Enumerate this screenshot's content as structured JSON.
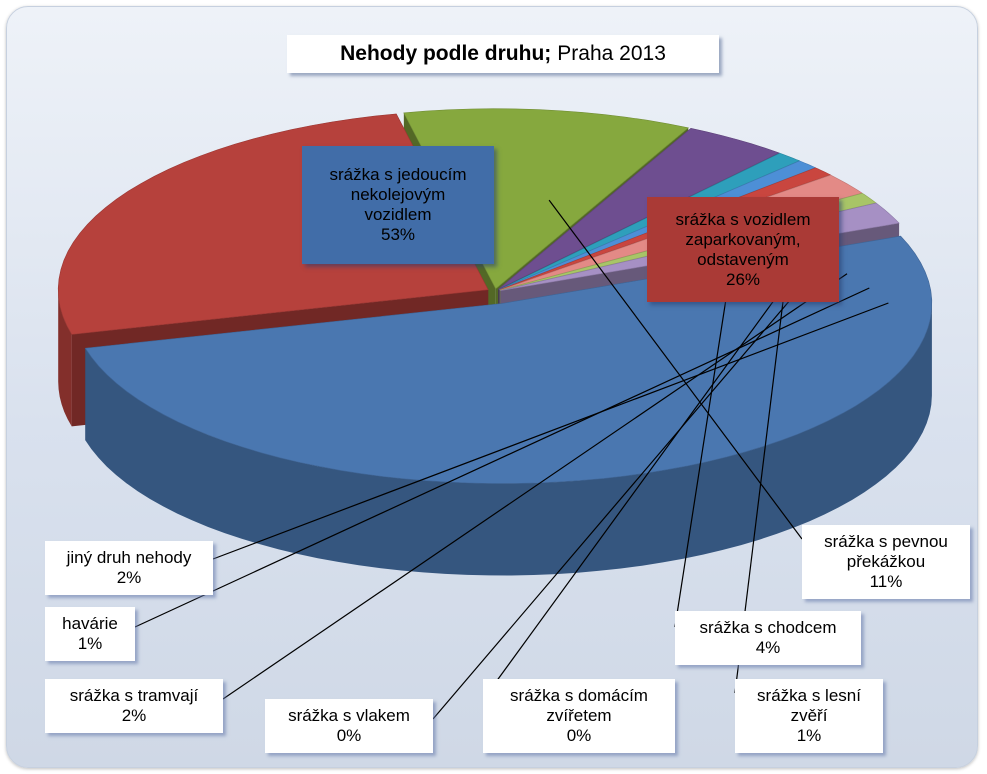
{
  "chart_data": {
    "type": "pie",
    "title_bold": "Nehody podle druhu;",
    "title_rest": "Praha 2013",
    "slices": [
      {
        "name": "srážka s jedoucím nekolejovým vozidlem",
        "lines": [
          "srážka s jedoucím",
          "nekolejovým",
          "vozidlem"
        ],
        "value": 53,
        "pct": "53%",
        "color": "#4a77b0"
      },
      {
        "name": "srážka s vozidlem zaparkovaným, odstaveným",
        "lines": [
          "srážka s vozidlem",
          "zaparkovaným,",
          "odstaveným"
        ],
        "value": 26,
        "pct": "26%",
        "color": "#b6413c"
      },
      {
        "name": "srážka s pevnou překážkou",
        "lines": [
          "srážka s pevnou",
          "překážkou"
        ],
        "value": 11,
        "pct": "11%",
        "color": "#86a83e"
      },
      {
        "name": "srážka s chodcem",
        "lines": [
          "srážka s chodcem"
        ],
        "value": 4,
        "pct": "4%",
        "color": "#6e4e90"
      },
      {
        "name": "srážka s lesní zvěří",
        "lines": [
          "srážka s lesní",
          "zvěří"
        ],
        "value": 1,
        "pct": "1%",
        "color": "#2e9fbb"
      },
      {
        "name": "srážka s domácím zvířetem",
        "lines": [
          "srážka s domácím",
          "zvířetem"
        ],
        "value": 0,
        "pct": "0%",
        "color": "#4d8fd6"
      },
      {
        "name": "srážka s vlakem",
        "lines": [
          "srážka s vlakem"
        ],
        "value": 0,
        "pct": "0%",
        "color": "#c9463f"
      },
      {
        "name": "srážka s tramvají",
        "lines": [
          "srážka s tramvají"
        ],
        "value": 2,
        "pct": "2%",
        "color": "#e38a86"
      },
      {
        "name": "havárie",
        "lines": [
          "havárie"
        ],
        "value": 1,
        "pct": "1%",
        "color": "#a8c567"
      },
      {
        "name": "jiný druh nehody",
        "lines": [
          "jiný druh nehody"
        ],
        "value": 2,
        "pct": "2%",
        "color": "#a690c4"
      }
    ]
  }
}
